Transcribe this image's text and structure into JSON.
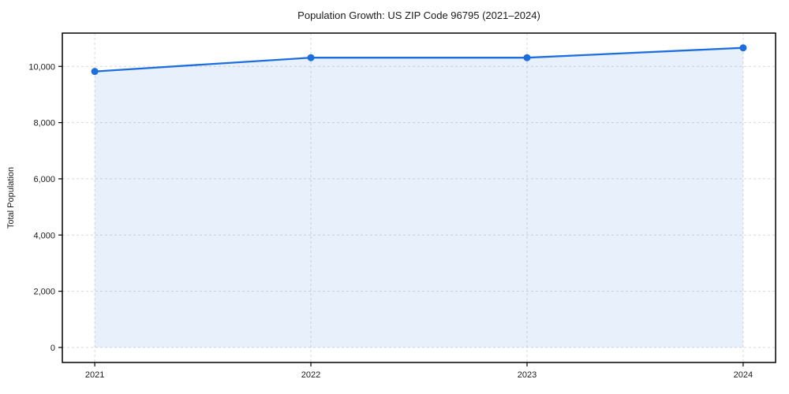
{
  "chart_data": {
    "type": "area",
    "title": "Population Growth: US ZIP Code 96795 (2021–2024)",
    "xlabel": "",
    "ylabel": "Total Population",
    "categories": [
      "2021",
      "2022",
      "2023",
      "2024"
    ],
    "x_values": [
      2021,
      2022,
      2023,
      2024
    ],
    "series": [
      {
        "name": "Total Population",
        "values": [
          9820,
          10310,
          10310,
          10660
        ]
      }
    ],
    "y_ticks": [
      0,
      2000,
      4000,
      6000,
      8000,
      10000
    ],
    "y_tick_labels": [
      "0",
      "2,000",
      "4,000",
      "6,000",
      "8,000",
      "10,000"
    ],
    "xlim": [
      2020.85,
      2024.15
    ],
    "ylim": [
      -535,
      11185
    ],
    "grid": true,
    "grid_style": "dashed",
    "legend": false,
    "colors": {
      "line": "#1d6edd",
      "marker": "#1d6edd",
      "fill": "#1d6edd",
      "fill_opacity": 0.1,
      "grid": "#d9d9d9",
      "spine": "#000000",
      "text": "#1a1a1a"
    }
  }
}
